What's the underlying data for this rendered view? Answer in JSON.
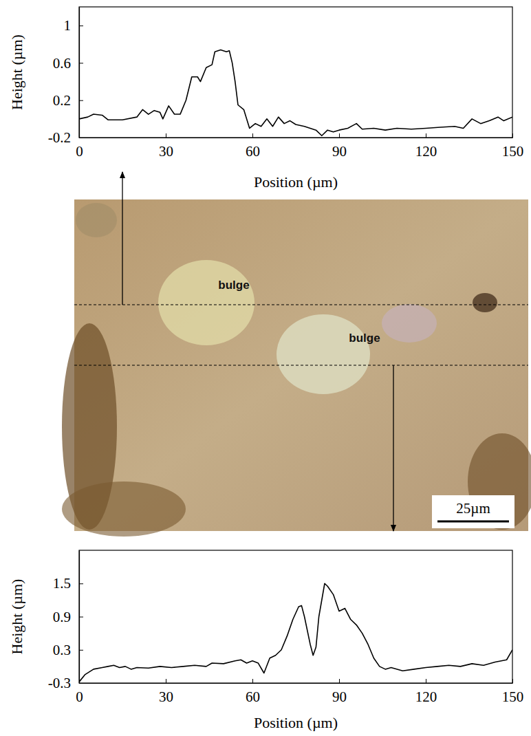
{
  "chart_data": [
    {
      "type": "line",
      "xlabel": "Position (µm)",
      "ylabel": "Height (µm)",
      "color": "#000000",
      "xlim": [
        0,
        150
      ],
      "xticks": [
        0,
        30,
        60,
        90,
        120,
        150
      ],
      "ylim": [
        -0.2,
        1.2
      ],
      "yticks": [
        -0.2,
        0.2,
        0.6,
        1
      ],
      "x": [
        0,
        3,
        5,
        8,
        10,
        15,
        20,
        22,
        24,
        26,
        28,
        29,
        31,
        33,
        35,
        37,
        39,
        41,
        42,
        44,
        46,
        47,
        49,
        51,
        52,
        53,
        54,
        55,
        57,
        59,
        61,
        63,
        65,
        67,
        69,
        71,
        73,
        75,
        78,
        80,
        82,
        84,
        86,
        88,
        90,
        93,
        96,
        98,
        102,
        106,
        110,
        115,
        120,
        125,
        130,
        133,
        136,
        139,
        142,
        145,
        147,
        150
      ],
      "values": [
        0.0,
        0.02,
        0.05,
        0.04,
        -0.01,
        -0.01,
        0.02,
        0.1,
        0.05,
        0.09,
        0.07,
        0.0,
        0.14,
        0.05,
        0.05,
        0.2,
        0.45,
        0.45,
        0.4,
        0.55,
        0.58,
        0.72,
        0.74,
        0.72,
        0.73,
        0.6,
        0.4,
        0.15,
        0.1,
        -0.1,
        -0.05,
        -0.08,
        0.0,
        -0.08,
        0.02,
        -0.05,
        -0.02,
        -0.06,
        -0.08,
        -0.1,
        -0.12,
        -0.18,
        -0.12,
        -0.14,
        -0.12,
        -0.1,
        -0.05,
        -0.11,
        -0.1,
        -0.12,
        -0.1,
        -0.11,
        -0.1,
        -0.09,
        -0.08,
        -0.1,
        0.0,
        -0.05,
        -0.02,
        0.02,
        -0.02,
        0.02
      ]
    },
    {
      "type": "line",
      "xlabel": "Position (µm)",
      "ylabel": "Height (µm)",
      "color": "#000000",
      "xlim": [
        0,
        150
      ],
      "xticks": [
        0,
        30,
        60,
        90,
        120,
        150
      ],
      "ylim": [
        -0.3,
        2.1
      ],
      "yticks": [
        -0.3,
        0.3,
        0.9,
        1.5
      ],
      "x": [
        0,
        2,
        5,
        8,
        10,
        12,
        14,
        16,
        18,
        20,
        24,
        28,
        32,
        36,
        40,
        44,
        46,
        50,
        54,
        56,
        58,
        60,
        62,
        64,
        66,
        68,
        70,
        72,
        74,
        76,
        77,
        78,
        80,
        81,
        82,
        83,
        85,
        86,
        88,
        90,
        92,
        94,
        96,
        98,
        100,
        102,
        104,
        106,
        108,
        112,
        116,
        120,
        124,
        128,
        132,
        136,
        140,
        144,
        148,
        150
      ],
      "values": [
        -0.28,
        -0.15,
        -0.05,
        -0.02,
        0.0,
        0.02,
        -0.02,
        0.0,
        -0.05,
        -0.02,
        -0.03,
        0.0,
        -0.02,
        0.0,
        0.02,
        0.0,
        0.06,
        0.05,
        0.1,
        0.12,
        0.06,
        0.1,
        0.06,
        -0.12,
        0.15,
        0.2,
        0.3,
        0.55,
        0.85,
        1.08,
        1.1,
        0.9,
        0.4,
        0.2,
        0.35,
        0.9,
        1.5,
        1.45,
        1.3,
        1.0,
        1.05,
        0.85,
        0.75,
        0.6,
        0.4,
        0.15,
        0.0,
        -0.05,
        -0.02,
        -0.08,
        -0.05,
        -0.02,
        0.0,
        0.02,
        0.0,
        0.05,
        0.02,
        0.08,
        0.12,
        0.3
      ]
    }
  ],
  "micrograph": {
    "labels": [
      "bulge",
      "bulge"
    ],
    "scale_bar": "25µm"
  }
}
